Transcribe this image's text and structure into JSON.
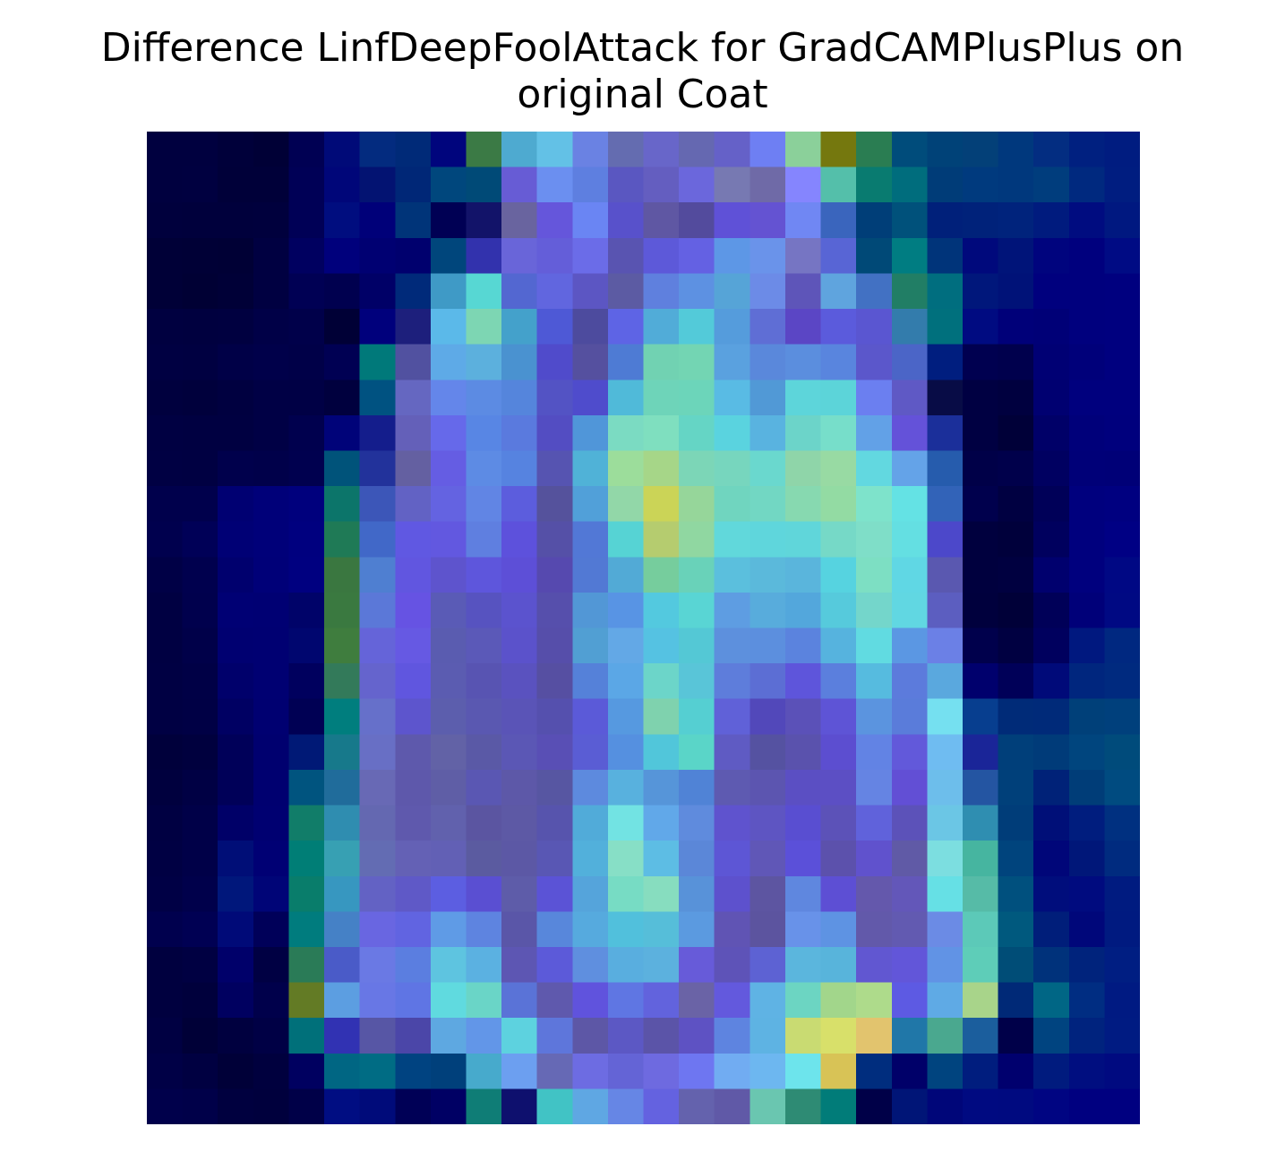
{
  "chart_data": {
    "type": "heatmap",
    "title": [
      "Difference LinfDeepFoolAttack for GradCAMPlusPlus on",
      "original Coat"
    ],
    "xlabel": "",
    "ylabel": "",
    "axes_visible": false,
    "colorbar": false,
    "rows": 28,
    "cols": 28,
    "colors": [
      [
        "#00003f",
        "#00003f",
        "#00003a",
        "#000036",
        "#000053",
        "#000a78",
        "#032b7f",
        "#002a78",
        "#00057d",
        "#3b7a45",
        "#4eaad0",
        "#63c1e6",
        "#6a82e3",
        "#646cb0",
        "#6866c9",
        "#6568b1",
        "#6561c8",
        "#6e7ff3",
        "#8bd09a",
        "#75780e",
        "#2a7d52",
        "#004c7b",
        "#004278",
        "#034078",
        "#00387d",
        "#032d81",
        "#002080",
        "#001c80"
      ],
      [
        "#00003f",
        "#000040",
        "#000039",
        "#000039",
        "#000056",
        "#000679",
        "#031372",
        "#002777",
        "#00477d",
        "#004a77",
        "#675cd5",
        "#6b8ff0",
        "#5e7fe0",
        "#5a57c1",
        "#645ec0",
        "#6b67dc",
        "#7779b2",
        "#6f6aa7",
        "#8585fe",
        "#54bfaa",
        "#097b70",
        "#006d7d",
        "#003c78",
        "#003a7e",
        "#00387d",
        "#003d7d",
        "#00297f",
        "#001d80"
      ],
      [
        "#00003d",
        "#00003c",
        "#00003c",
        "#00003d",
        "#000056",
        "#000d7f",
        "#000079",
        "#003479",
        "#000054",
        "#121369",
        "#69649f",
        "#6556db",
        "#6a85f3",
        "#5851cb",
        "#5f57a3",
        "#534b9d",
        "#5f51d7",
        "#6453d2",
        "#7087f3",
        "#3a65bd",
        "#003e78",
        "#00517b",
        "#00207a",
        "#00227a",
        "#00237c",
        "#001b7e",
        "#000c80",
        "#001880"
      ],
      [
        "#000037",
        "#000036",
        "#000035",
        "#000041",
        "#000060",
        "#00007c",
        "#000072",
        "#00006e",
        "#00467c",
        "#3232ad",
        "#6965d9",
        "#645ed9",
        "#6b6ce8",
        "#5954b1",
        "#5d59d9",
        "#6461e3",
        "#5d97e6",
        "#6a93ea",
        "#7675c3",
        "#5865d5",
        "#004977",
        "#007d82",
        "#00347a",
        "#00097c",
        "#001479",
        "#00047e",
        "#00007e",
        "#000b84"
      ],
      [
        "#000037",
        "#000034",
        "#000037",
        "#000041",
        "#000054",
        "#00004f",
        "#000067",
        "#002a7a",
        "#3f9ac6",
        "#57d7d3",
        "#5367d1",
        "#6166df",
        "#5c56c3",
        "#5c5ba3",
        "#5f80de",
        "#5d91e2",
        "#56a4d7",
        "#6c8be7",
        "#5e55b9",
        "#5fa4de",
        "#4271c3",
        "#217e65",
        "#006e7f",
        "#00177b",
        "#001278",
        "#00007e",
        "#00007e",
        "#00007f"
      ],
      [
        "#000040",
        "#00003f",
        "#000040",
        "#000047",
        "#00004a",
        "#000036",
        "#00007c",
        "#1d1f7c",
        "#5bb9e9",
        "#7dd6b3",
        "#44a1cb",
        "#4e59d6",
        "#4d4b9e",
        "#5e64e5",
        "#51acd8",
        "#53cad9",
        "#559cdc",
        "#5f6ed5",
        "#5b46c5",
        "#5b5bdc",
        "#5a56d1",
        "#337cac",
        "#00707d",
        "#000b81",
        "#000079",
        "#000077",
        "#00007e",
        "#00007f"
      ],
      [
        "#000042",
        "#000041",
        "#000047",
        "#00004a",
        "#000048",
        "#000053",
        "#00797a",
        "#5151a0",
        "#5eaae7",
        "#5cb0dd",
        "#4a92d0",
        "#504bcb",
        "#55509f",
        "#4e7bd4",
        "#71d2b2",
        "#73d5b3",
        "#5aa1df",
        "#5a88db",
        "#5b8ede",
        "#5985de",
        "#5b57cb",
        "#4b65c7",
        "#001e7f",
        "#000050",
        "#00004d",
        "#000074",
        "#00007a",
        "#00007f"
      ],
      [
        "#00003e",
        "#00003c",
        "#000040",
        "#000045",
        "#000045",
        "#00003e",
        "#005281",
        "#6567c1",
        "#6486ea",
        "#5c8be3",
        "#5585dc",
        "#5353c4",
        "#4f4ccc",
        "#50bad9",
        "#6ed4b9",
        "#6cd5ba",
        "#59bbe4",
        "#5199d6",
        "#5dd5da",
        "#5cd4d9",
        "#6b7ff0",
        "#5f59c5",
        "#080c46",
        "#000042",
        "#00003f",
        "#000071",
        "#00007e",
        "#00007e"
      ],
      [
        "#000042",
        "#000041",
        "#000041",
        "#000045",
        "#00004e",
        "#000379",
        "#141d8c",
        "#6460b9",
        "#6669ea",
        "#5886e4",
        "#5a7ade",
        "#534dc2",
        "#5096d9",
        "#7bdbc2",
        "#7fdfbf",
        "#65d5c5",
        "#5ad3df",
        "#59b3e0",
        "#6cd4c9",
        "#77deca",
        "#62a1e7",
        "#6452d9",
        "#1b2f9a",
        "#000042",
        "#000038",
        "#000068",
        "#00007a",
        "#00007d"
      ],
      [
        "#000043",
        "#000042",
        "#00004c",
        "#00004a",
        "#00004f",
        "#00537a",
        "#22329b",
        "#6460a1",
        "#655de3",
        "#5d8be4",
        "#5683e0",
        "#5654b1",
        "#50b2d7",
        "#9cdd9b",
        "#a6d688",
        "#7cd6b7",
        "#77d6be",
        "#6ad8ce",
        "#8fd5a9",
        "#98daa3",
        "#62d8e0",
        "#64a3e8",
        "#265cad",
        "#000048",
        "#00004b",
        "#000061",
        "#000078",
        "#000077"
      ],
      [
        "#00004c",
        "#00004c",
        "#000072",
        "#000079",
        "#00007d",
        "#0c756a",
        "#3c56b8",
        "#6262c4",
        "#6463e1",
        "#6185e4",
        "#5c5ddd",
        "#55529c",
        "#51a0d9",
        "#92d7a8",
        "#cbd457",
        "#96d69a",
        "#70d5bf",
        "#72d7c3",
        "#87d9b0",
        "#93dba3",
        "#7ee3cb",
        "#64e2e4",
        "#3263b8",
        "#00004d",
        "#000041",
        "#000058",
        "#00007e",
        "#000080"
      ],
      [
        "#00004e",
        "#000057",
        "#000075",
        "#000079",
        "#00007f",
        "#1f7a56",
        "#4168c8",
        "#6058e2",
        "#6258e0",
        "#5f7fe0",
        "#5d51dc",
        "#5550a7",
        "#5278d6",
        "#56d3d4",
        "#b5cc6f",
        "#90d7a1",
        "#61d8db",
        "#5fd6dc",
        "#60d6da",
        "#76d9c7",
        "#7fdec8",
        "#64dfe2",
        "#4c48ca",
        "#00003e",
        "#00003b",
        "#00005e",
        "#00007e",
        "#000084"
      ],
      [
        "#000046",
        "#00004e",
        "#00006e",
        "#000078",
        "#000080",
        "#3a7740",
        "#4f7fd1",
        "#6156e0",
        "#5e54cd",
        "#5e56dc",
        "#5d4fd7",
        "#5649af",
        "#5279d4",
        "#52aad6",
        "#76cd9d",
        "#69d2b9",
        "#5bbfdd",
        "#5bb9db",
        "#5ab5dc",
        "#56d3e0",
        "#7ddfc3",
        "#60d7e4",
        "#5a58b0",
        "#00003e",
        "#000040",
        "#00006e",
        "#00007e",
        "#000884"
      ],
      [
        "#000042",
        "#00004d",
        "#000074",
        "#000073",
        "#000369",
        "#3a7940",
        "#5b78d8",
        "#6653e3",
        "#5a5bb6",
        "#5753c0",
        "#5b53ce",
        "#564fac",
        "#5297d6",
        "#5894e4",
        "#53c9df",
        "#59d5d4",
        "#5e9de2",
        "#58acdc",
        "#53a7dc",
        "#56cadc",
        "#74d6cb",
        "#61d7e2",
        "#5c5ec0",
        "#00003d",
        "#000038",
        "#000058",
        "#000079",
        "#000983"
      ],
      [
        "#000042",
        "#000049",
        "#000071",
        "#000072",
        "#00066f",
        "#3f7d3e",
        "#6564d9",
        "#6659e3",
        "#5a5cb0",
        "#5b59b8",
        "#5b52cb",
        "#564eaa",
        "#519fd3",
        "#63a8e6",
        "#55c2e2",
        "#54c8d5",
        "#5d90dd",
        "#5c8fde",
        "#5b83de",
        "#56b3de",
        "#61dbe1",
        "#5b97e3",
        "#6b80e6",
        "#00004c",
        "#000041",
        "#00005e",
        "#00187f",
        "#002880"
      ],
      [
        "#000043",
        "#000046",
        "#00006b",
        "#000072",
        "#00005e",
        "#337a5a",
        "#6564cd",
        "#6056df",
        "#5b5cb1",
        "#5854b2",
        "#5a52bf",
        "#564fa2",
        "#5581d9",
        "#5ba7e6",
        "#6cd5c9",
        "#59c5d8",
        "#5e7ddb",
        "#5c6ed4",
        "#5e55db",
        "#5b7fdd",
        "#56bbdf",
        "#5c7bdc",
        "#5aa8de",
        "#00006d",
        "#000058",
        "#000a79",
        "#00267e",
        "#002a7f"
      ],
      [
        "#000043",
        "#000045",
        "#000063",
        "#000071",
        "#000054",
        "#007e7e",
        "#6670ca",
        "#5d55cd",
        "#5c5ead",
        "#5a58b1",
        "#5a54b7",
        "#5550ae",
        "#5b5ad8",
        "#5699e0",
        "#7fd2ae",
        "#55cfd2",
        "#6061d8",
        "#5248ba",
        "#5b51b8",
        "#5e54d6",
        "#5b94df",
        "#5a7cda",
        "#75e0f0",
        "#073e8f",
        "#002b78",
        "#002a79",
        "#004079",
        "#00407c"
      ],
      [
        "#00003b",
        "#00003e",
        "#000059",
        "#00006f",
        "#001976",
        "#17798b",
        "#686fc5",
        "#5e59ac",
        "#6262a6",
        "#5a59a6",
        "#5b57b5",
        "#594fb5",
        "#5a5dd4",
        "#5590e0",
        "#51c6da",
        "#5ad5c8",
        "#5f5bc3",
        "#5552a1",
        "#5a52ad",
        "#5c4ed0",
        "#6283e4",
        "#6259da",
        "#6fbcf1",
        "#1a2598",
        "#003f7a",
        "#003b79",
        "#00457e",
        "#004b7b"
      ],
      [
        "#00003e",
        "#000044",
        "#000058",
        "#000070",
        "#00547f",
        "#206c9b",
        "#6869b5",
        "#5e58ab",
        "#5f5ea6",
        "#5a57b3",
        "#5d58a8",
        "#5756a2",
        "#5d8ade",
        "#58b1de",
        "#5695d9",
        "#5083d6",
        "#5e5ab1",
        "#5c55b0",
        "#5b4fc3",
        "#5c4fc4",
        "#6584e3",
        "#624fd5",
        "#6dbeeb",
        "#2455a2",
        "#00407a",
        "#002278",
        "#003d78",
        "#004b80"
      ],
      [
        "#000042",
        "#000048",
        "#000068",
        "#000071",
        "#117d69",
        "#2f8db0",
        "#6468b1",
        "#5f59ad",
        "#6161ad",
        "#5b55a1",
        "#5d59a5",
        "#5754ad",
        "#51abd9",
        "#72e3e3",
        "#61a8e9",
        "#5f8bdd",
        "#5f53ce",
        "#5e55c2",
        "#594ed1",
        "#5c52b8",
        "#6062db",
        "#5c52b9",
        "#6bc6e5",
        "#2f8eb1",
        "#003d79",
        "#000f78",
        "#001d7e",
        "#003080"
      ],
      [
        "#000043",
        "#000048",
        "#000e77",
        "#000074",
        "#007e76",
        "#37a0b3",
        "#636cb3",
        "#6461b5",
        "#6260b5",
        "#5b5ba0",
        "#5c58a5",
        "#5957b4",
        "#52b0db",
        "#87dfc6",
        "#5dbde4",
        "#5b87d8",
        "#5d56d5",
        "#6057b7",
        "#5b50d9",
        "#5c51ac",
        "#6052cd",
        "#605aa6",
        "#7cdee0",
        "#46b5a0",
        "#00447d",
        "#000679",
        "#001779",
        "#002b7f"
      ],
      [
        "#000045",
        "#00004b",
        "#00177b",
        "#000577",
        "#097d6b",
        "#3797c0",
        "#6362c4",
        "#5f59c7",
        "#5c5ee1",
        "#5a4fd2",
        "#5e5ca9",
        "#5b53d6",
        "#55a4db",
        "#77dcc4",
        "#87ddbf",
        "#5892d9",
        "#5d51cd",
        "#5d55a1",
        "#5f87df",
        "#5d4fd4",
        "#6458ac",
        "#6357b9",
        "#66e0e5",
        "#56bba7",
        "#00507e",
        "#000d7c",
        "#000b7f",
        "#001b80"
      ],
      [
        "#00004e",
        "#000053",
        "#000a78",
        "#000059",
        "#007c7e",
        "#4581c6",
        "#6966e1",
        "#6164e1",
        "#5f9be6",
        "#5e84e0",
        "#5a56a8",
        "#5887db",
        "#56aade",
        "#51c0dc",
        "#56bed9",
        "#5b9ae0",
        "#6054b4",
        "#5c549f",
        "#6892e9",
        "#5e93e3",
        "#6259aa",
        "#625ab1",
        "#6b8be5",
        "#5cc9b8",
        "#00597e",
        "#001e7a",
        "#00077a",
        "#001a80"
      ],
      [
        "#00003f",
        "#000042",
        "#00006a",
        "#000043",
        "#2a7b57",
        "#4a5bc8",
        "#6a79e4",
        "#5b7ee0",
        "#5ec4e0",
        "#5bb1e1",
        "#5d56b3",
        "#5c5ad9",
        "#5f8fdf",
        "#59aedf",
        "#5cb1de",
        "#675bd9",
        "#5e53b8",
        "#5d62d3",
        "#5bb6dd",
        "#58b4db",
        "#6157d1",
        "#6256d9",
        "#6193e5",
        "#5ecdb8",
        "#004d77",
        "#00327b",
        "#00237c",
        "#001e82"
      ],
      [
        "#00003f",
        "#00003c",
        "#000060",
        "#00004b",
        "#637b25",
        "#5c9ee1",
        "#6877e5",
        "#5f75e4",
        "#60dadf",
        "#6ad5c7",
        "#5a73d7",
        "#5f59ad",
        "#6053dd",
        "#5f76e3",
        "#6263dd",
        "#6a63a6",
        "#6359dd",
        "#5fb3e4",
        "#6cd5c2",
        "#a2d68b",
        "#aedb8b",
        "#5d5ae3",
        "#5faae5",
        "#a8d48a",
        "#002977",
        "#006685",
        "#002d82",
        "#001a82"
      ],
      [
        "#000042",
        "#000037",
        "#00003f",
        "#000045",
        "#00707a",
        "#3132b3",
        "#5756a5",
        "#4b46a8",
        "#5ea8e1",
        "#6296e8",
        "#5dd2df",
        "#5e76db",
        "#5d57a6",
        "#5c58c4",
        "#5b54a8",
        "#5e52c3",
        "#5e84e0",
        "#5eb3e3",
        "#c9db72",
        "#d8e06a",
        "#e2c46e",
        "#2077a8",
        "#4aa88f",
        "#1b5e9d",
        "#000049",
        "#004480",
        "#00237e",
        "#001b82"
      ],
      [
        "#000046",
        "#000041",
        "#000038",
        "#00003e",
        "#000060",
        "#006683",
        "#006c84",
        "#004381",
        "#00407b",
        "#47aacc",
        "#6c9ff0",
        "#6669b5",
        "#6d6ce2",
        "#6464d6",
        "#6e6ae0",
        "#6e76f1",
        "#71acf2",
        "#6db7f0",
        "#6de4ec",
        "#d8c356",
        "#002d7e",
        "#000069",
        "#00447f",
        "#001d7e",
        "#00006e",
        "#001b7e",
        "#000e80",
        "#000a80"
      ],
      [
        "#00004b",
        "#000049",
        "#00003f",
        "#00003d",
        "#000048",
        "#000d82",
        "#000b7a",
        "#000056",
        "#000064",
        "#0f7d76",
        "#0e106e",
        "#41c3c5",
        "#5fa7e3",
        "#6686e5",
        "#6462e0",
        "#6462ad",
        "#6059a7",
        "#6ac6b0",
        "#2e8b74",
        "#017c79",
        "#000048",
        "#001577",
        "#000679",
        "#000a81",
        "#000a80",
        "#000582",
        "#000080",
        "#000080"
      ]
    ]
  }
}
